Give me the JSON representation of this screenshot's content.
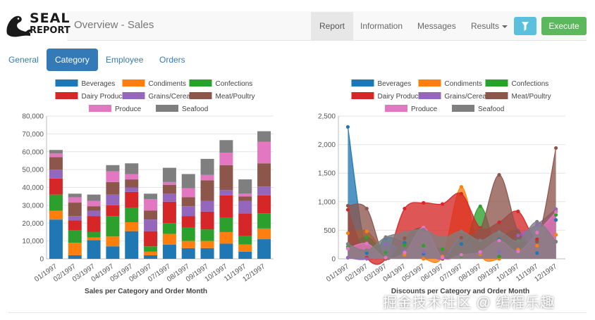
{
  "app": {
    "logo_line1": "SEAL",
    "logo_line2": "REPORT",
    "title": "Overview - Sales"
  },
  "nav": {
    "report": "Report",
    "information": "Information",
    "messages": "Messages",
    "results": "Results",
    "execute": "Execute"
  },
  "tabs": [
    "General",
    "Category",
    "Employee",
    "Orders"
  ],
  "watermark": "掘金技术社区 @ 编程乐趣",
  "chart_data": [
    {
      "type": "bar",
      "stacked": true,
      "title": "Sales per Category and Order Month",
      "categories": [
        "01/1997",
        "02/1997",
        "03/1997",
        "04/1997",
        "05/1997",
        "06/1997",
        "07/1997",
        "08/1997",
        "09/1997",
        "10/1997",
        "11/1997",
        "12/1997"
      ],
      "yticks": [
        "0",
        "10,000",
        "20,000",
        "30,000",
        "40,000",
        "50,000",
        "60,000",
        "70,000",
        "80,000"
      ],
      "ylim": [
        0,
        80000
      ],
      "series": [
        {
          "name": "Beverages",
          "color": "#1f77b4",
          "values": [
            22000,
            2000,
            10500,
            7000,
            15500,
            2000,
            8000,
            6000,
            6000,
            8500,
            4000,
            11000
          ]
        },
        {
          "name": "Condiments",
          "color": "#ff7f0e",
          "values": [
            5000,
            7000,
            1500,
            5500,
            5000,
            2000,
            6000,
            4000,
            4000,
            6500,
            4000,
            6000
          ]
        },
        {
          "name": "Confections",
          "color": "#2ca02c",
          "values": [
            9000,
            7000,
            3000,
            11500,
            8000,
            3000,
            6000,
            7500,
            6500,
            8000,
            5000,
            8500
          ]
        },
        {
          "name": "Dairy Products",
          "color": "#d62728",
          "values": [
            9000,
            5500,
            9000,
            6000,
            9000,
            8500,
            12000,
            6500,
            10000,
            12500,
            12500,
            10000
          ]
        },
        {
          "name": "Grains/Cereals",
          "color": "#9467bd",
          "values": [
            5000,
            2500,
            3000,
            6000,
            2500,
            6500,
            4500,
            5500,
            6000,
            3000,
            7000,
            5000
          ]
        },
        {
          "name": "Meat/Poultry",
          "color": "#8c564b",
          "values": [
            7000,
            7500,
            2500,
            7000,
            4500,
            5000,
            5000,
            5000,
            11500,
            14000,
            2500,
            13000
          ]
        },
        {
          "name": "Produce",
          "color": "#e377c2",
          "values": [
            2000,
            3000,
            3000,
            6000,
            3000,
            6500,
            1500,
            5000,
            3000,
            7000,
            1500,
            12000
          ]
        },
        {
          "name": "Seafood",
          "color": "#7f7f7f",
          "values": [
            2000,
            2000,
            3500,
            3500,
            6000,
            3000,
            8000,
            8000,
            9000,
            7000,
            8000,
            6000
          ]
        }
      ]
    },
    {
      "type": "area",
      "title": "Discounts per Category and Order Month",
      "categories": [
        "01/1997",
        "02/1997",
        "03/1997",
        "04/1997",
        "05/1997",
        "06/1997",
        "07/1997",
        "08/1997",
        "09/1997",
        "10/1997",
        "11/1997",
        "12/1997"
      ],
      "yticks": [
        "0",
        "500",
        "1,000",
        "1,500",
        "2,000",
        "2,500"
      ],
      "ylim": [
        0,
        2500
      ],
      "series": [
        {
          "name": "Beverages",
          "color": "#1f77b4",
          "values": [
            2310,
            100,
            370,
            280,
            90,
            20,
            260,
            80,
            340,
            490,
            100,
            680
          ]
        },
        {
          "name": "Condiments",
          "color": "#ff7f0e",
          "values": [
            450,
            480,
            110,
            70,
            0,
            40,
            1260,
            80,
            0,
            160,
            230,
            420
          ]
        },
        {
          "name": "Confections",
          "color": "#2ca02c",
          "values": [
            210,
            380,
            110,
            240,
            230,
            170,
            50,
            920,
            40,
            320,
            300,
            770
          ]
        },
        {
          "name": "Dairy Products",
          "color": "#d62728",
          "values": [
            860,
            20,
            0,
            880,
            980,
            960,
            1140,
            540,
            640,
            830,
            340,
            830
          ]
        },
        {
          "name": "Grains/Cereals",
          "color": "#9467bd",
          "values": [
            20,
            0,
            260,
            140,
            120,
            0,
            380,
            110,
            120,
            410,
            600,
            870
          ]
        },
        {
          "name": "Meat/Poultry",
          "color": "#8c564b",
          "values": [
            930,
            880,
            0,
            360,
            530,
            0,
            370,
            520,
            1470,
            480,
            300,
            1940
          ]
        },
        {
          "name": "Produce",
          "color": "#e377c2",
          "values": [
            180,
            270,
            20,
            110,
            550,
            20,
            70,
            120,
            320,
            130,
            460,
            820
          ]
        },
        {
          "name": "Seafood",
          "color": "#7f7f7f",
          "values": [
            260,
            150,
            380,
            460,
            510,
            370,
            480,
            320,
            470,
            310,
            650,
            300
          ]
        }
      ]
    }
  ]
}
